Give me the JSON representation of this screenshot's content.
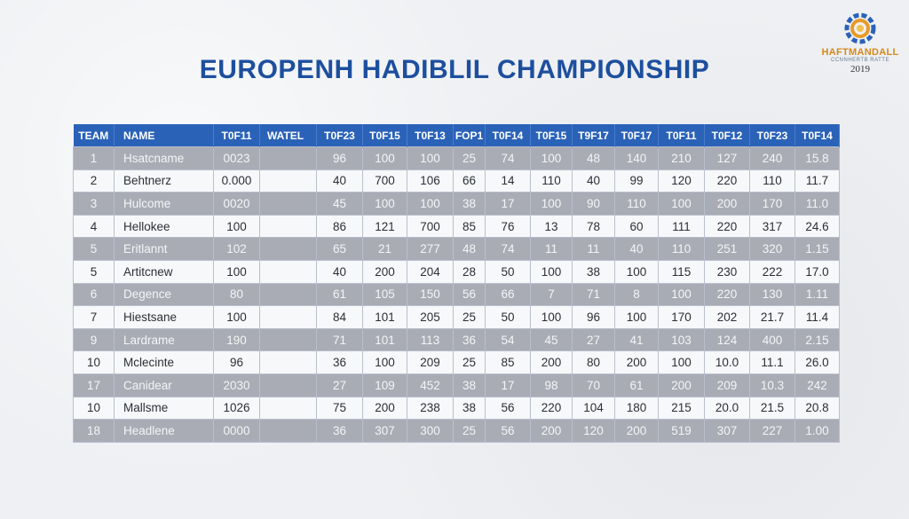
{
  "title": "EUROPENH HADIBLIL CHAMPIONSHIP",
  "logo": {
    "name": "HAFTMANDALL",
    "subtitle": "CCNNHERTB RATTE",
    "year": "2019",
    "colors": {
      "ring_blue": "#2a62b8",
      "ring_orange": "#e79a28"
    }
  },
  "table": {
    "headers": [
      "TEAM",
      "NAME",
      "T0F11",
      "WATEL",
      "T0F23",
      "T0F15",
      "T0F13",
      "FOP1",
      "T0F14",
      "T0F15",
      "T9F17",
      "T0F17",
      "T0F11",
      "T0F12",
      "T0F23",
      "T0F14"
    ],
    "rows": [
      [
        "1",
        "Hsatcname",
        "0023",
        "",
        "96",
        "100",
        "100",
        "25",
        "74",
        "100",
        "48",
        "140",
        "210",
        "127",
        "240",
        "15.8"
      ],
      [
        "2",
        "Behtnerz",
        "0.000",
        "",
        "40",
        "700",
        "106",
        "66",
        "14",
        "110",
        "40",
        "99",
        "120",
        "220",
        "110",
        "11.7"
      ],
      [
        "3",
        "Hulcome",
        "0020",
        "",
        "45",
        "100",
        "100",
        "38",
        "17",
        "100",
        "90",
        "110",
        "100",
        "200",
        "170",
        "11.0"
      ],
      [
        "4",
        "Hellokee",
        "100",
        "",
        "86",
        "121",
        "700",
        "85",
        "76",
        "13",
        "78",
        "60",
        "111",
        "220",
        "317",
        "24.6"
      ],
      [
        "5",
        "Eritlannt",
        "102",
        "",
        "65",
        "21",
        "277",
        "48",
        "74",
        "11",
        "11",
        "40",
        "110",
        "251",
        "320",
        "1.15"
      ],
      [
        "5",
        "Artitcnew",
        "100",
        "",
        "40",
        "200",
        "204",
        "28",
        "50",
        "100",
        "38",
        "100",
        "115",
        "230",
        "222",
        "17.0"
      ],
      [
        "6",
        "Degence",
        "80",
        "",
        "61",
        "105",
        "150",
        "56",
        "66",
        "7",
        "71",
        "8",
        "100",
        "220",
        "130",
        "1.11"
      ],
      [
        "7",
        "Hiestsane",
        "100",
        "",
        "84",
        "101",
        "205",
        "25",
        "50",
        "100",
        "96",
        "100",
        "170",
        "202",
        "21.7",
        "11.4"
      ],
      [
        "9",
        "Lardrame",
        "190",
        "",
        "71",
        "101",
        "113",
        "36",
        "54",
        "45",
        "27",
        "41",
        "103",
        "124",
        "400",
        "2.15"
      ],
      [
        "10",
        "Mclecinte",
        "96",
        "",
        "36",
        "100",
        "209",
        "25",
        "85",
        "200",
        "80",
        "200",
        "100",
        "10.0",
        "11.1",
        "26.0"
      ],
      [
        "17",
        "Canidear",
        "2030",
        "",
        "27",
        "109",
        "452",
        "38",
        "17",
        "98",
        "70",
        "61",
        "200",
        "209",
        "10.3",
        "242"
      ],
      [
        "10",
        "Mallsme",
        "1026",
        "",
        "75",
        "200",
        "238",
        "38",
        "56",
        "220",
        "104",
        "180",
        "215",
        "20.0",
        "21.5",
        "20.8"
      ],
      [
        "18",
        "Headlene",
        "0000",
        "",
        "36",
        "307",
        "300",
        "25",
        "56",
        "200",
        "120",
        "200",
        "519",
        "307",
        "227",
        "1.00"
      ]
    ]
  }
}
